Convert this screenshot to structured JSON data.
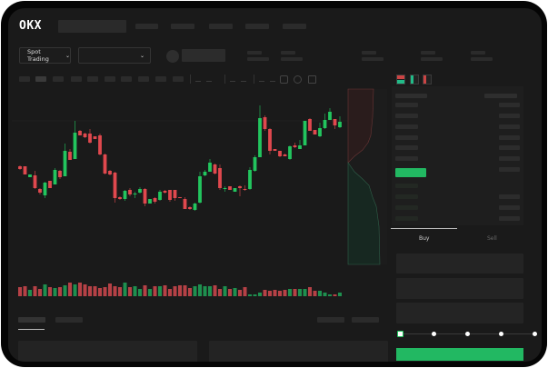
{
  "header": {
    "logo_text": "OKX",
    "market_selector_label": "Spot Trading",
    "chevron_icon": "chevron-down-icon"
  },
  "order_book": {
    "view_icons": [
      "orderbook-both-icon",
      "orderbook-bids-icon",
      "orderbook-asks-icon"
    ]
  },
  "trade_panel": {
    "tabs": [
      {
        "label": "Buy",
        "active": true
      },
      {
        "label": "Sell",
        "active": false
      }
    ],
    "slider_percent": 0,
    "slider_stops": 5
  },
  "colors": {
    "up": "#22c55e",
    "down": "#e0484e",
    "background": "#1a1a1a",
    "primary_button": "#22b862"
  },
  "chart_data": {
    "type": "candlestick",
    "title": "",
    "grid": false,
    "candles_ohlc": [
      [
        118,
        119,
        114,
        115
      ],
      [
        118,
        118,
        109,
        109
      ],
      [
        106,
        109,
        106,
        109
      ],
      [
        108,
        113,
        93,
        94
      ],
      [
        93,
        94,
        87,
        89
      ],
      [
        86,
        101,
        83,
        100
      ],
      [
        102,
        102,
        94,
        94
      ],
      [
        98,
        116,
        98,
        114
      ],
      [
        113,
        114,
        104,
        106
      ],
      [
        107,
        143,
        107,
        135
      ],
      [
        134,
        137,
        125,
        125
      ],
      [
        126,
        168,
        126,
        155
      ],
      [
        157,
        158,
        152,
        152
      ],
      [
        154,
        155,
        149,
        150
      ],
      [
        154,
        159,
        143,
        144
      ],
      [
        151,
        151,
        148,
        148
      ],
      [
        152,
        154,
        130,
        131
      ],
      [
        131,
        132,
        109,
        110
      ],
      [
        113,
        114,
        108,
        109
      ],
      [
        111,
        112,
        78,
        83
      ],
      [
        84,
        85,
        81,
        82
      ],
      [
        82,
        92,
        80,
        91
      ],
      [
        92,
        94,
        85,
        87
      ],
      [
        87,
        90,
        83,
        88
      ],
      [
        89,
        95,
        88,
        93
      ],
      [
        93,
        94,
        74,
        77
      ],
      [
        77,
        82,
        77,
        82
      ],
      [
        83,
        84,
        77,
        79
      ],
      [
        81,
        92,
        80,
        90
      ],
      [
        91,
        92,
        88,
        89
      ],
      [
        92,
        92,
        79,
        81
      ],
      [
        92,
        92,
        80,
        83
      ],
      [
        84,
        84,
        83,
        83
      ],
      [
        82,
        84,
        71,
        71
      ],
      [
        73,
        74,
        70,
        71
      ],
      [
        70,
        78,
        69,
        77
      ],
      [
        78,
        112,
        77,
        107
      ],
      [
        108,
        114,
        107,
        112
      ],
      [
        112,
        126,
        112,
        122
      ],
      [
        120,
        121,
        109,
        110
      ],
      [
        116,
        120,
        92,
        94
      ],
      [
        93,
        96,
        90,
        94
      ],
      [
        96,
        96,
        92,
        92
      ],
      [
        90,
        94,
        90,
        94
      ],
      [
        96,
        97,
        85,
        94
      ],
      [
        93,
        97,
        91,
        92
      ],
      [
        93,
        117,
        92,
        114
      ],
      [
        113,
        130,
        112,
        128
      ],
      [
        128,
        185,
        128,
        171
      ],
      [
        172,
        174,
        157,
        159
      ],
      [
        159,
        160,
        131,
        135
      ],
      [
        137,
        137,
        135,
        135
      ],
      [
        135,
        135,
        128,
        129
      ],
      [
        131,
        132,
        129,
        129
      ],
      [
        126,
        141,
        125,
        140
      ],
      [
        141,
        144,
        138,
        139
      ],
      [
        137,
        147,
        137,
        141
      ],
      [
        141,
        168,
        141,
        168
      ],
      [
        170,
        171,
        157,
        157
      ],
      [
        158,
        158,
        153,
        153
      ],
      [
        151,
        166,
        150,
        160
      ],
      [
        160,
        176,
        159,
        169
      ],
      [
        169,
        182,
        169,
        178
      ],
      [
        170,
        170,
        159,
        163
      ],
      [
        161,
        173,
        160,
        167
      ]
    ],
    "volumes": [
      10,
      11,
      7,
      11,
      8,
      13,
      10,
      9,
      10,
      12,
      15,
      13,
      15,
      13,
      11,
      11,
      9,
      10,
      14,
      11,
      10,
      15,
      10,
      11,
      8,
      12,
      8,
      11,
      11,
      12,
      8,
      11,
      12,
      12,
      9,
      11,
      13,
      11,
      11,
      12,
      8,
      11,
      8,
      9,
      7,
      10,
      2,
      2,
      4,
      7,
      6,
      7,
      6,
      7,
      8,
      8,
      8,
      8,
      10,
      6,
      6,
      4,
      2,
      2,
      4
    ]
  }
}
